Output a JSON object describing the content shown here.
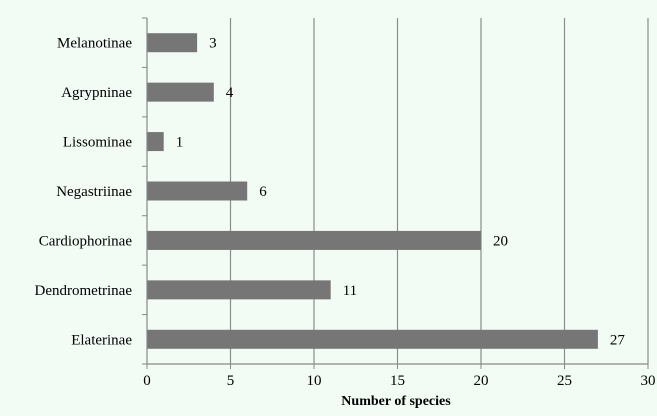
{
  "chart_data": {
    "type": "bar",
    "orientation": "horizontal",
    "title": "",
    "xlabel": "Number of species",
    "ylabel": "",
    "categories": [
      "Melanotinae",
      "Agrypninae",
      "Lissominae",
      "Negastriinae",
      "Cardiophorinae",
      "Dendrometrinae",
      "Elaterinae"
    ],
    "values": [
      3,
      4,
      1,
      6,
      20,
      11,
      27
    ],
    "xlim": [
      0,
      30
    ],
    "xticks": [
      "0",
      "5",
      "10",
      "15",
      "20",
      "25",
      "30"
    ],
    "grid": "vertical",
    "legend": "none",
    "bar_color": "#767676",
    "grid_color": "#8c8c8c",
    "background_color": "#f2fbf4"
  }
}
